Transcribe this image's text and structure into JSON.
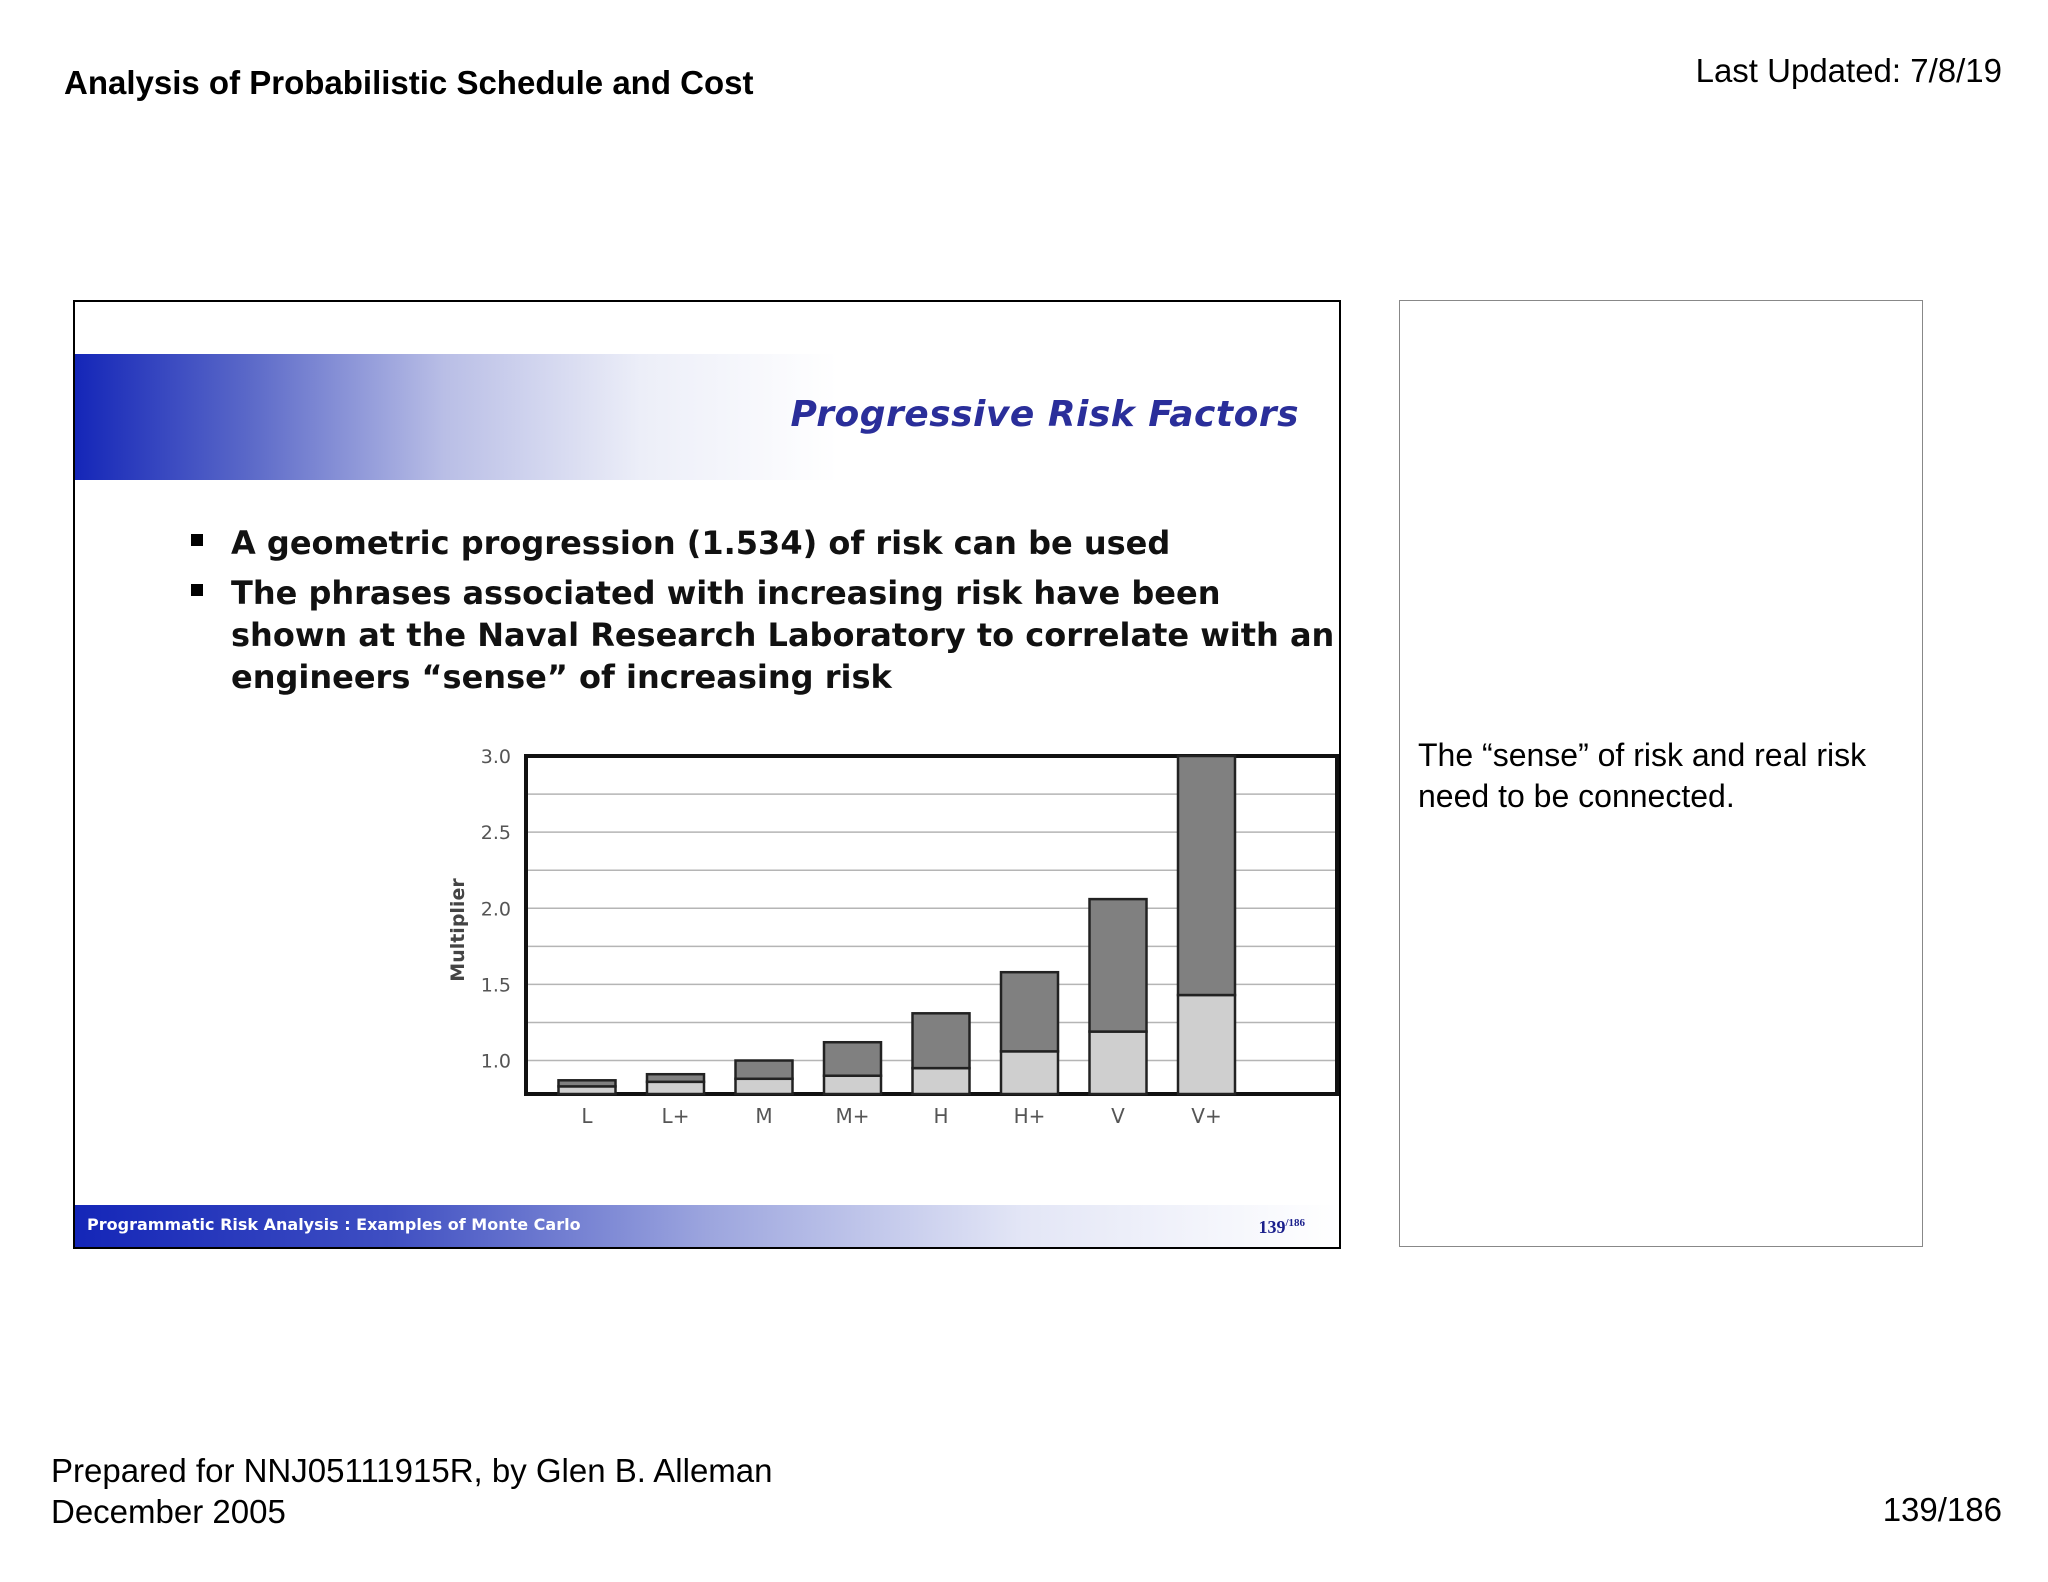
{
  "header": {
    "title": "Analysis of Probabilistic Schedule and Cost",
    "last_updated": "Last Updated: 7/8/19"
  },
  "slide": {
    "title": "Progressive Risk Factors",
    "bullets": [
      "A geometric progression (1.534) of risk can be used",
      "The phrases associated with increasing risk have been shown at the Naval Research Laboratory to correlate with an engineers “sense” of increasing risk"
    ],
    "footer_text": "Programmatic Risk Analysis : Examples of Monte Carlo",
    "footer_page": "139",
    "footer_page_total": "/186"
  },
  "chart_data": {
    "type": "bar",
    "ylabel": "Multiplier",
    "xlabel": "",
    "ylim": [
      0.78,
      3.0
    ],
    "yticks": [
      "3.0",
      "2.5",
      "2.0",
      "1.5",
      "1.0"
    ],
    "ytick_values": [
      3.0,
      2.5,
      2.0,
      1.5,
      1.0
    ],
    "grid": true,
    "categories": [
      "L",
      "L+",
      "M",
      "M+",
      "H",
      "H+",
      "V",
      "V+"
    ],
    "series": [
      {
        "values": [
          0.83,
          0.86,
          0.88,
          0.9,
          0.95,
          1.06,
          1.19,
          1.43
        ]
      },
      {
        "values": [
          0.87,
          0.91,
          1.0,
          1.12,
          1.31,
          1.58,
          2.06,
          3.0
        ]
      }
    ],
    "colors": {
      "lower": "#cfcfcf",
      "upper": "#808080"
    }
  },
  "note": {
    "text": "The “sense” of risk and real risk need to be connected."
  },
  "footer": {
    "prepared_line1": "Prepared for NNJ05111915R, by Glen B. Alleman",
    "prepared_line2": "December 2005",
    "page": "139/186"
  }
}
